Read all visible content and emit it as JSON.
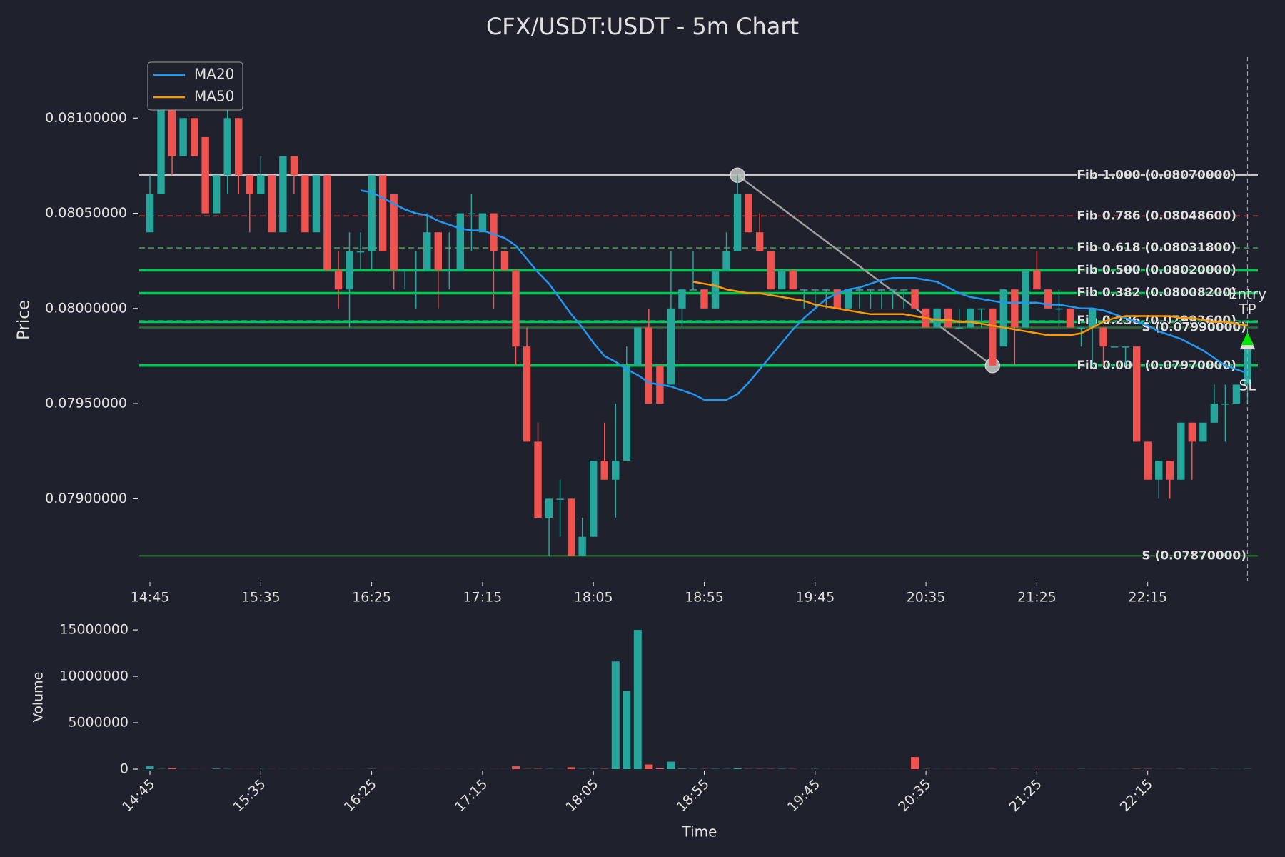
{
  "chart_data": {
    "type": "candlestick",
    "title": "CFX/USDT:USDT - 5m Chart",
    "y_label": "Price",
    "x_label": "Time",
    "volume_label": "Volume",
    "up_color": "#26a69a",
    "down_color": "#ef5350",
    "categories": [
      "14:45",
      null,
      null,
      null,
      null,
      null,
      null,
      null,
      null,
      null,
      "15:35",
      null,
      null,
      null,
      null,
      null,
      null,
      null,
      null,
      null,
      "16:25",
      null,
      null,
      null,
      null,
      null,
      null,
      null,
      null,
      null,
      "17:15",
      null,
      null,
      null,
      null,
      null,
      null,
      null,
      null,
      null,
      "18:05",
      null,
      null,
      null,
      null,
      null,
      null,
      null,
      null,
      null,
      "18:55",
      null,
      null,
      null,
      null,
      null,
      null,
      null,
      null,
      null,
      "19:45",
      null,
      null,
      null,
      null,
      null,
      null,
      null,
      null,
      null,
      "20:35",
      null,
      null,
      null,
      null,
      null,
      null,
      null,
      null,
      null,
      "21:25",
      null,
      null,
      null,
      null,
      null,
      null,
      null,
      null,
      null,
      "22:15",
      null,
      null,
      null,
      null,
      null,
      null,
      null,
      null,
      null
    ],
    "ohlc": [
      [
        0.0804,
        0.0807,
        0.0804,
        0.0806
      ],
      [
        0.0806,
        0.0812,
        0.0806,
        0.0812
      ],
      [
        0.0811,
        0.0812,
        0.0807,
        0.0808
      ],
      [
        0.0808,
        0.081,
        0.0808,
        0.081
      ],
      [
        0.081,
        0.081,
        0.0808,
        0.0808
      ],
      [
        0.0809,
        0.0809,
        0.0805,
        0.0805
      ],
      [
        0.0805,
        0.0807,
        0.0805,
        0.0807
      ],
      [
        0.0807,
        0.0811,
        0.0806,
        0.081
      ],
      [
        0.081,
        0.081,
        0.0806,
        0.0807
      ],
      [
        0.0807,
        0.0807,
        0.0804,
        0.0806
      ],
      [
        0.0806,
        0.0808,
        0.0806,
        0.0807
      ],
      [
        0.0807,
        0.0807,
        0.0804,
        0.0804
      ],
      [
        0.0804,
        0.0808,
        0.0804,
        0.0808
      ],
      [
        0.0808,
        0.0808,
        0.0806,
        0.0807
      ],
      [
        0.0807,
        0.0807,
        0.0804,
        0.0804
      ],
      [
        0.0804,
        0.0807,
        0.0804,
        0.0807
      ],
      [
        0.0807,
        0.0807,
        0.0802,
        0.0802
      ],
      [
        0.0802,
        0.0803,
        0.08,
        0.0801
      ],
      [
        0.0801,
        0.0804,
        0.0799,
        0.0803
      ],
      [
        0.0803,
        0.0804,
        0.0802,
        0.0803
      ],
      [
        0.0803,
        0.0807,
        0.0802,
        0.0807
      ],
      [
        0.0807,
        0.0807,
        0.0803,
        0.0803
      ],
      [
        0.0806,
        0.0806,
        0.0801,
        0.0802
      ],
      [
        0.0802,
        0.0802,
        0.0801,
        0.0802
      ],
      [
        0.0802,
        0.0803,
        0.08,
        0.0802
      ],
      [
        0.0802,
        0.0805,
        0.0802,
        0.0804
      ],
      [
        0.0804,
        0.0804,
        0.08,
        0.0802
      ],
      [
        0.0802,
        0.0804,
        0.0801,
        0.0802
      ],
      [
        0.0802,
        0.0805,
        0.0802,
        0.0805
      ],
      [
        0.0805,
        0.0806,
        0.0803,
        0.0805
      ],
      [
        0.0804,
        0.0805,
        0.0804,
        0.0805
      ],
      [
        0.0805,
        0.0805,
        0.08,
        0.0803
      ],
      [
        0.0803,
        0.0803,
        0.0802,
        0.0802
      ],
      [
        0.0802,
        0.0802,
        0.0797,
        0.0798
      ],
      [
        0.0798,
        0.0799,
        0.0793,
        0.0793
      ],
      [
        0.0793,
        0.0794,
        0.0789,
        0.0789
      ],
      [
        0.0789,
        0.079,
        0.0787,
        0.079
      ],
      [
        0.079,
        0.0791,
        0.0788,
        0.079
      ],
      [
        0.079,
        0.079,
        0.0787,
        0.0787
      ],
      [
        0.0787,
        0.0789,
        0.0787,
        0.0788
      ],
      [
        0.0788,
        0.0792,
        0.0788,
        0.0792
      ],
      [
        0.0792,
        0.0794,
        0.0791,
        0.0791
      ],
      [
        0.0791,
        0.0795,
        0.0789,
        0.0792
      ],
      [
        0.0792,
        0.0798,
        0.0792,
        0.0797
      ],
      [
        0.0797,
        0.0799,
        0.0797,
        0.0799
      ],
      [
        0.0799,
        0.08,
        0.0795,
        0.0795
      ],
      [
        0.0797,
        0.0797,
        0.0795,
        0.0795
      ],
      [
        0.0796,
        0.0803,
        0.0796,
        0.08
      ],
      [
        0.08,
        0.0801,
        0.0799,
        0.0801
      ],
      [
        0.0801,
        0.0803,
        0.0801,
        0.0801
      ],
      [
        0.0801,
        0.0801,
        0.08,
        0.08
      ],
      [
        0.08,
        0.0802,
        0.08,
        0.0802
      ],
      [
        0.0802,
        0.0804,
        0.0802,
        0.0803
      ],
      [
        0.0803,
        0.0807,
        0.0803,
        0.0806
      ],
      [
        0.0806,
        0.0806,
        0.0804,
        0.0804
      ],
      [
        0.0804,
        0.0805,
        0.0803,
        0.0803
      ],
      [
        0.0803,
        0.0803,
        0.0801,
        0.0801
      ],
      [
        0.0801,
        0.0802,
        0.0801,
        0.0802
      ],
      [
        0.0802,
        0.0802,
        0.0801,
        0.0801
      ],
      [
        0.0801,
        0.0801,
        0.08,
        0.0801
      ],
      [
        0.0801,
        0.0801,
        0.08,
        0.0801
      ],
      [
        0.0801,
        0.0801,
        0.08,
        0.0801
      ],
      [
        0.0801,
        0.0801,
        0.08,
        0.08
      ],
      [
        0.08,
        0.0801,
        0.08,
        0.0801
      ],
      [
        0.0801,
        0.0801,
        0.08,
        0.0801
      ],
      [
        0.0801,
        0.0801,
        0.08,
        0.0801
      ],
      [
        0.0801,
        0.0801,
        0.08,
        0.0801
      ],
      [
        0.0801,
        0.0801,
        0.08,
        0.0801
      ],
      [
        0.0801,
        0.0801,
        0.08,
        0.0801
      ],
      [
        0.0801,
        0.0801,
        0.08,
        0.08
      ],
      [
        0.08,
        0.08,
        0.0799,
        0.0799
      ],
      [
        0.0799,
        0.08,
        0.0799,
        0.08
      ],
      [
        0.08,
        0.08,
        0.0799,
        0.0799
      ],
      [
        0.0799,
        0.08,
        0.0799,
        0.0799
      ],
      [
        0.0799,
        0.08,
        0.0799,
        0.08
      ],
      [
        0.08,
        0.08,
        0.0799,
        0.08
      ],
      [
        0.08,
        0.08,
        0.0797,
        0.0797
      ],
      [
        0.0798,
        0.0801,
        0.0798,
        0.0801
      ],
      [
        0.0801,
        0.0801,
        0.0797,
        0.0799
      ],
      [
        0.0799,
        0.0802,
        0.0799,
        0.0802
      ],
      [
        0.0802,
        0.0803,
        0.0801,
        0.0801
      ],
      [
        0.0801,
        0.0801,
        0.08,
        0.08
      ],
      [
        0.08,
        0.0801,
        0.0799,
        0.08
      ],
      [
        0.08,
        0.08,
        0.0799,
        0.0799
      ],
      [
        0.0799,
        0.0799,
        0.0798,
        0.0799
      ],
      [
        0.0799,
        0.08,
        0.0797,
        0.08
      ],
      [
        0.0799,
        0.0799,
        0.0797,
        0.0798
      ],
      [
        0.0798,
        0.0798,
        0.0798,
        0.0798
      ],
      [
        0.0798,
        0.0798,
        0.0797,
        0.0798
      ],
      [
        0.0798,
        0.0798,
        0.0793,
        0.0793
      ],
      [
        0.0793,
        0.0793,
        0.0791,
        0.0791
      ],
      [
        0.0791,
        0.0792,
        0.079,
        0.0792
      ],
      [
        0.0792,
        0.0792,
        0.079,
        0.0791
      ],
      [
        0.0791,
        0.0794,
        0.0791,
        0.0794
      ],
      [
        0.0794,
        0.0794,
        0.0791,
        0.0793
      ],
      [
        0.0793,
        0.0794,
        0.0793,
        0.0794
      ],
      [
        0.0794,
        0.0796,
        0.0794,
        0.0795
      ],
      [
        0.0795,
        0.0796,
        0.0793,
        0.0795
      ],
      [
        0.0795,
        0.0796,
        0.0795,
        0.0796
      ],
      [
        0.0796,
        0.0798,
        0.0795,
        0.0798
      ]
    ],
    "volume": [
      300000,
      20000,
      100000,
      10000,
      10000,
      5000,
      50000,
      20000,
      10000,
      10000,
      10000,
      5000,
      10000,
      5000,
      5000,
      10000,
      5000,
      5000,
      10000,
      5000,
      20000,
      5000,
      5000,
      5000,
      5000,
      5000,
      5000,
      5000,
      5000,
      5000,
      5000,
      10000,
      10000,
      300000,
      20000,
      30000,
      20000,
      10000,
      200000,
      20000,
      20000,
      30000,
      11600000,
      8400000,
      15000000,
      500000,
      100000,
      800000,
      50000,
      30000,
      20000,
      30000,
      20000,
      100000,
      20000,
      20000,
      20000,
      30000,
      20000,
      10000,
      20000,
      10000,
      10000,
      10000,
      10000,
      10000,
      10000,
      10000,
      10000,
      1300000,
      20000,
      10000,
      10000,
      10000,
      10000,
      10000,
      20000,
      10000,
      20000,
      10000,
      10000,
      10000,
      10000,
      10000,
      20000,
      10000,
      10000,
      10000,
      10000,
      30000,
      20000,
      10000,
      10000,
      20000,
      10000,
      10000,
      20000,
      10000,
      10000,
      20000
    ],
    "series": [
      {
        "name": "MA20",
        "color": "#2196f3",
        "values": [
          null,
          null,
          null,
          null,
          null,
          null,
          null,
          null,
          null,
          null,
          null,
          null,
          null,
          null,
          null,
          null,
          null,
          null,
          null,
          0.08062,
          0.08061,
          0.08058,
          0.08055,
          0.08052,
          0.0805,
          0.08049,
          0.08046,
          0.08044,
          0.08042,
          0.08041,
          0.08041,
          0.08039,
          0.08037,
          0.08033,
          0.08026,
          0.08019,
          0.08013,
          0.08005,
          0.07997,
          0.0799,
          0.07982,
          0.07975,
          0.07972,
          0.07968,
          0.07965,
          0.07961,
          0.0796,
          0.07959,
          0.07957,
          0.07955,
          0.07952,
          0.07952,
          0.07952,
          0.07955,
          0.07961,
          0.07968,
          0.07975,
          0.07982,
          0.07989,
          0.07995,
          0.08,
          0.08005,
          0.08008,
          0.0801,
          0.08011,
          0.08013,
          0.08015,
          0.08016,
          0.08016,
          0.08016,
          0.08015,
          0.08014,
          0.08011,
          0.08008,
          0.08006,
          0.08005,
          0.08004,
          0.08003,
          0.08003,
          0.08003,
          0.08003,
          0.08002,
          0.08002,
          0.08001,
          0.08,
          0.08,
          0.07999,
          0.07997,
          0.07995,
          0.07993,
          0.07991,
          0.07988,
          0.07986,
          0.07984,
          0.07981,
          0.07978,
          0.07974,
          0.0797,
          0.07968,
          0.07966
        ]
      },
      {
        "name": "MA50",
        "color": "#ff9800",
        "values": [
          null,
          null,
          null,
          null,
          null,
          null,
          null,
          null,
          null,
          null,
          null,
          null,
          null,
          null,
          null,
          null,
          null,
          null,
          null,
          null,
          null,
          null,
          null,
          null,
          null,
          null,
          null,
          null,
          null,
          null,
          null,
          null,
          null,
          null,
          null,
          null,
          null,
          null,
          null,
          null,
          null,
          null,
          null,
          null,
          null,
          null,
          null,
          null,
          null,
          0.08014,
          0.08013,
          0.08012,
          0.0801,
          0.08009,
          0.08008,
          0.08008,
          0.08007,
          0.08006,
          0.08005,
          0.08004,
          0.08002,
          0.08001,
          0.08,
          0.07999,
          0.07998,
          0.07997,
          0.07997,
          0.07997,
          0.07997,
          0.07996,
          0.07995,
          0.07994,
          0.07994,
          0.07993,
          0.07993,
          0.07992,
          0.07991,
          0.0799,
          0.07989,
          0.07988,
          0.07987,
          0.07986,
          0.07986,
          0.07986,
          0.07987,
          0.0799,
          0.07993,
          0.07995,
          0.07996,
          0.07996,
          0.07996,
          0.07996,
          0.07996,
          0.07995,
          0.07995,
          0.07994,
          0.07993,
          0.07993,
          0.07992,
          0.07991
        ]
      }
    ],
    "ylim": [
      0.07857,
      0.08132
    ],
    "yticks": [
      {
        "value": 0.079,
        "label": "0.07900000"
      },
      {
        "value": 0.0795,
        "label": "0.07950000"
      },
      {
        "value": 0.08,
        "label": "0.08000000"
      },
      {
        "value": 0.0805,
        "label": "0.08050000"
      },
      {
        "value": 0.081,
        "label": "0.08100000"
      }
    ],
    "volume_ylim": [
      0,
      15700000
    ],
    "volume_yticks": [
      0,
      5000000,
      10000000,
      15000000
    ],
    "legend": "upper left",
    "trade_lines": [
      {
        "value": 0.0802,
        "color": "#00c853"
      },
      {
        "value": 0.08008,
        "color": "#00c853"
      },
      {
        "value": 0.07993,
        "color": "#00c853"
      },
      {
        "value": 0.0797,
        "color": "#00c853"
      }
    ],
    "levels": [
      {
        "label": "Fib 1.000 (0.08070000)",
        "value": 0.0807,
        "color": "#e0e0e0",
        "style": "solid"
      },
      {
        "label": "Fib 0.786 (0.08048600)",
        "value": 0.080486,
        "color": "#d94040",
        "style": "dashed"
      },
      {
        "label": "Fib 0.618 (0.08031800)",
        "value": 0.080318,
        "color": "#4caf50",
        "style": "dashed"
      },
      {
        "label": "Fib 0.500 (0.08020000)",
        "value": 0.0802,
        "color": "#e6a817",
        "style": "solid"
      },
      {
        "label": "Fib 0.382 (0.08008200)",
        "value": 0.080082,
        "color": "#3f6fb0",
        "style": "dashed"
      },
      {
        "label": "Fib 0.236 (0.07993600)",
        "value": 0.079936,
        "color": "#7e57c2",
        "style": "dashed"
      },
      {
        "label": "Fib 0.000 (0.07970000)",
        "value": 0.0797,
        "color": "#e0e0e0",
        "style": "solid"
      },
      {
        "label": "S (0.07990000)",
        "value": 0.0799,
        "color": "#2e7d32",
        "style": "solid"
      },
      {
        "label": "S (0.07870000)",
        "value": 0.0787,
        "color": "#2e7d32",
        "style": "solid"
      }
    ],
    "swing": {
      "index": [
        53,
        76
      ],
      "values": [
        0.0807,
        0.0797
      ],
      "color": "#9e9e9e"
    },
    "markers": [
      {
        "label": "Entry",
        "value": 0.08007,
        "color": "#e0e0e0"
      },
      {
        "label": "TP",
        "value": 0.07999,
        "color": "#00e676"
      },
      {
        "label": "SL",
        "value": 0.07959,
        "color": "#e53935"
      }
    ]
  }
}
